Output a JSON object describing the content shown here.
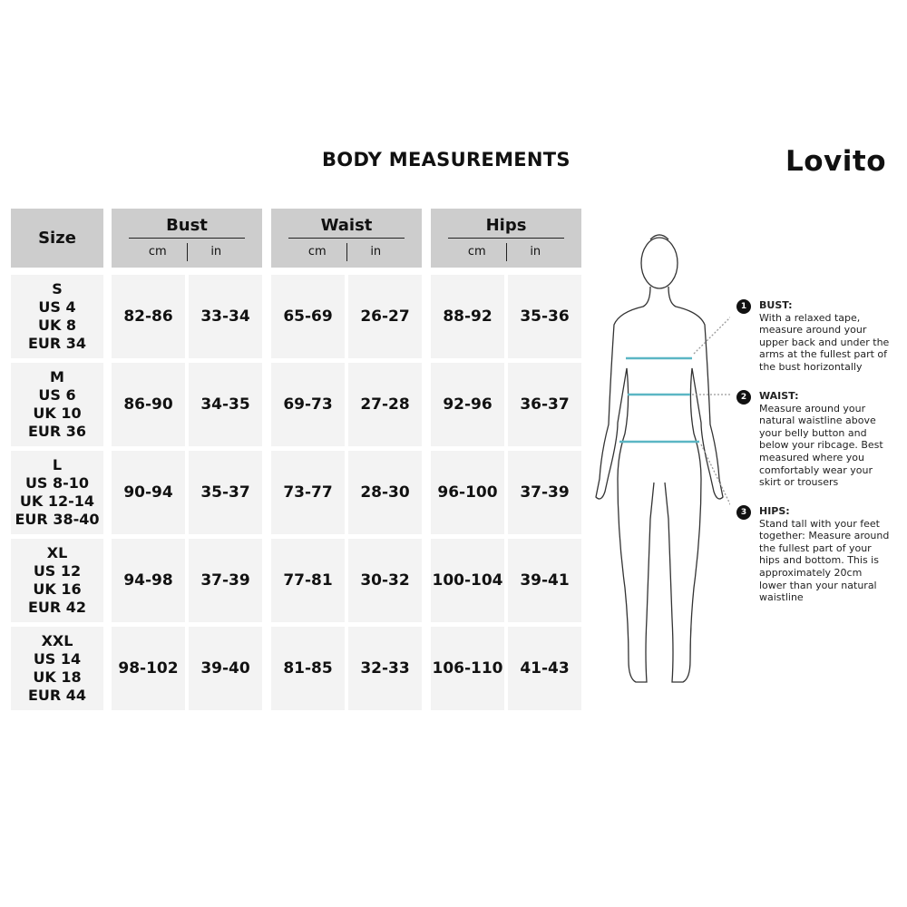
{
  "title": "BODY MEASUREMENTS",
  "brand": "Lovito",
  "table": {
    "size_header": "Size",
    "groups": [
      {
        "label": "Bust",
        "units": [
          "cm",
          "in"
        ]
      },
      {
        "label": "Waist",
        "units": [
          "cm",
          "in"
        ]
      },
      {
        "label": "Hips",
        "units": [
          "cm",
          "in"
        ]
      }
    ],
    "rows": [
      {
        "size": [
          "S",
          "US 4",
          "UK 8",
          "EUR 34"
        ],
        "values": [
          "82-86",
          "33-34",
          "65-69",
          "26-27",
          "88-92",
          "35-36"
        ]
      },
      {
        "size": [
          "M",
          "US 6",
          "UK 10",
          "EUR 36"
        ],
        "values": [
          "86-90",
          "34-35",
          "69-73",
          "27-28",
          "92-96",
          "36-37"
        ]
      },
      {
        "size": [
          "L",
          "US 8-10",
          "UK 12-14",
          "EUR 38-40"
        ],
        "values": [
          "90-94",
          "35-37",
          "73-77",
          "28-30",
          "96-100",
          "37-39"
        ]
      },
      {
        "size": [
          "XL",
          "US 12",
          "UK 16",
          "EUR 42"
        ],
        "values": [
          "94-98",
          "37-39",
          "77-81",
          "30-32",
          "100-104",
          "39-41"
        ]
      },
      {
        "size": [
          "XXL",
          "US 14",
          "UK 18",
          "EUR 44"
        ],
        "values": [
          "98-102",
          "39-40",
          "81-85",
          "32-33",
          "106-110",
          "41-43"
        ]
      }
    ]
  },
  "guide": [
    {
      "num": "1",
      "title": "BUST:",
      "text": "With a relaxed tape, measure around your upper back and under the arms at the fullest part of the bust horizontally"
    },
    {
      "num": "2",
      "title": "WAIST:",
      "text": "Measure around your natural waistline above your belly button and below your ribcage. Best measured where you comfortably wear your skirt or trousers"
    },
    {
      "num": "3",
      "title": "HIPS:",
      "text": "Stand tall with your feet together: Measure around the fullest part of your hips and bottom. This is approximately 20cm lower than your natural waistline"
    }
  ],
  "colors": {
    "header_bg": "#cdcdcd",
    "cell_bg": "#f3f3f3",
    "tape": "#5bb6c4"
  }
}
